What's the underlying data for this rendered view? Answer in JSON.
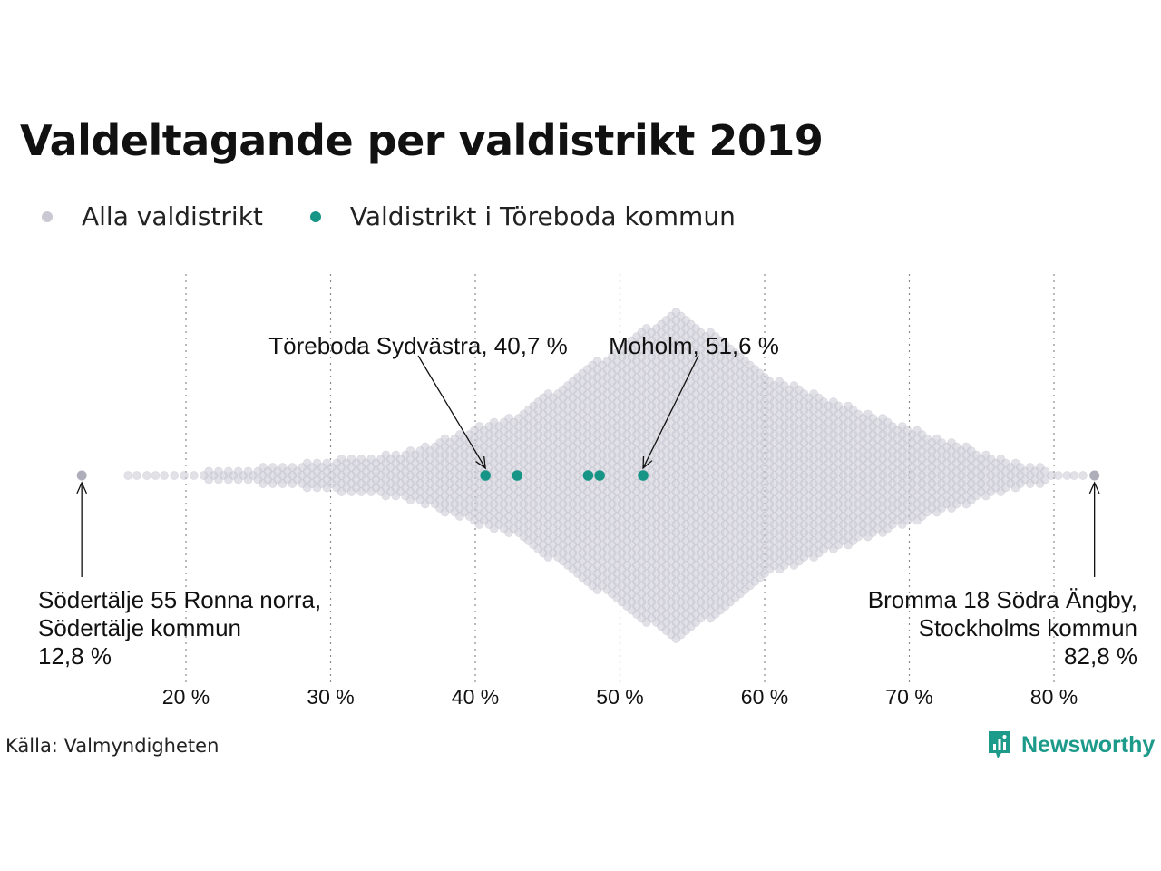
{
  "colors": {
    "all": "#c9c8d3",
    "highlight": "#169486",
    "grid": "#8c8c8c",
    "brand": "#1c9a8a"
  },
  "chart_data": {
    "type": "scatter",
    "title": "Valdeltagande per valdistrikt 2019",
    "xlim": [
      12,
      85
    ],
    "x_ticks": [
      20,
      30,
      40,
      50,
      60,
      70,
      80
    ],
    "x_tick_labels": [
      "20 %",
      "30 %",
      "40 %",
      "50 %",
      "60 %",
      "70 %",
      "80 %"
    ],
    "grid": "vertical dotted",
    "legend_placement": "top-left",
    "series": [
      {
        "name": "Alla valdistrikt",
        "color": "#c9c8d3",
        "distribution": "beeswarm, peak near 54 %",
        "min": 12.8,
        "max": 82.8
      },
      {
        "name": "Valdistrikt i Töreboda kommun",
        "color": "#169486",
        "values": [
          40.7,
          42.9,
          47.8,
          48.6,
          51.6
        ]
      }
    ],
    "annotations": [
      {
        "lines": [
          "Töreboda Sydvästra, 40,7 %"
        ],
        "x": 40.7
      },
      {
        "lines": [
          "Moholm, 51,6 %"
        ],
        "x": 51.6
      },
      {
        "lines": [
          "Södertälje 55 Ronna norra,",
          "Södertälje kommun",
          "12,8 %"
        ],
        "x": 12.8
      },
      {
        "lines": [
          "Bromma 18 Södra Ängby,",
          "Stockholms kommun",
          "82,8 %"
        ],
        "x": 82.8
      }
    ]
  },
  "legend": {
    "all_label": "Alla valdistrikt",
    "highlight_label": "Valdistrikt i Töreboda kommun"
  },
  "source": "Källa: Valmyndigheten",
  "brand": {
    "name": "Newsworthy",
    "icon": "newsworthy-logo-icon"
  }
}
